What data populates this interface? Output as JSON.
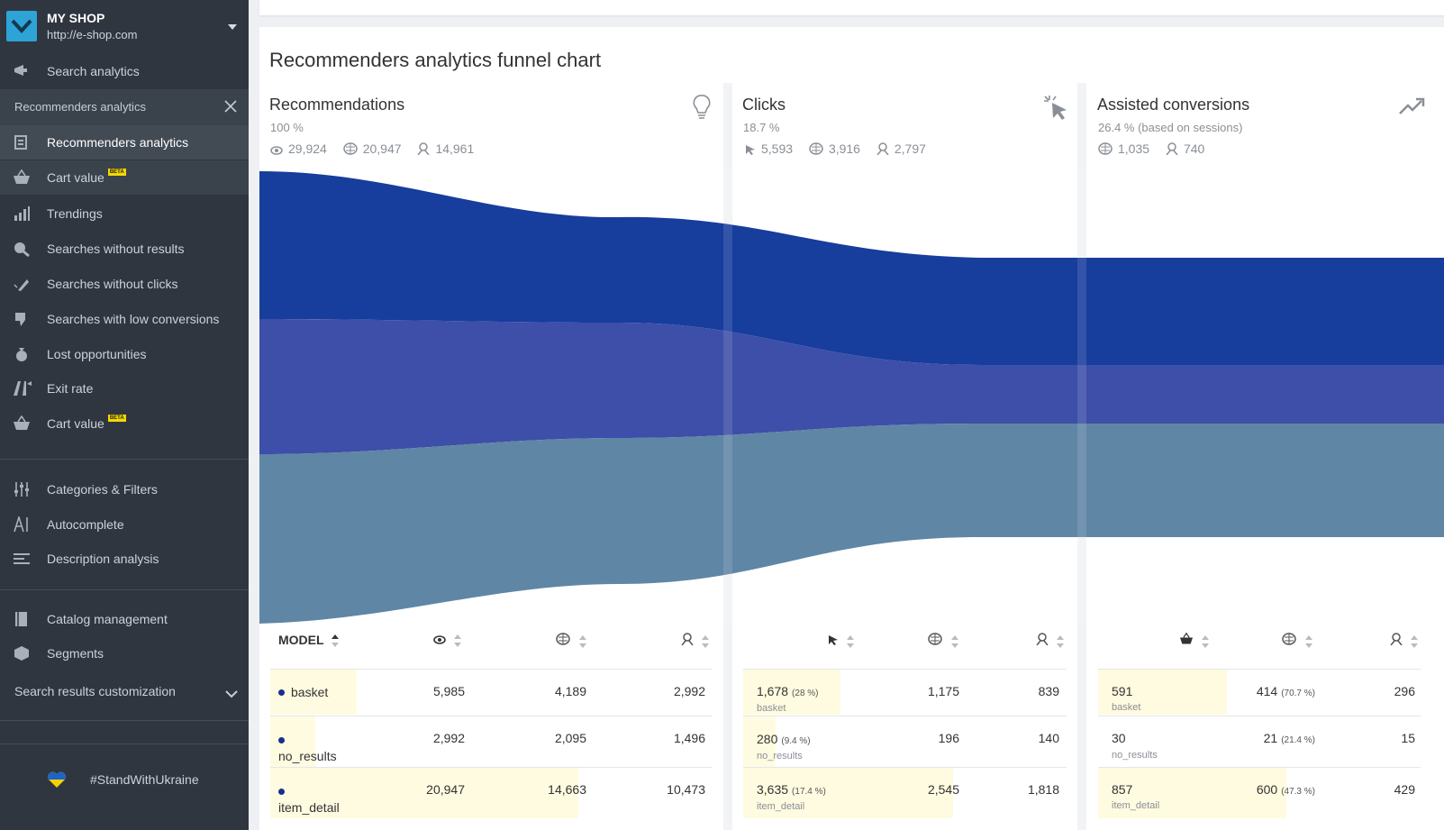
{
  "shop": {
    "name": "MY SHOP",
    "url": "http://e-shop.com"
  },
  "sidebar": {
    "search_analytics": "Search analytics",
    "section_title": "Recommenders analytics",
    "items": [
      {
        "label": "Recommenders analytics",
        "icon": "report-icon"
      },
      {
        "label": "Cart value",
        "icon": "basket-icon",
        "badge": "BETA"
      },
      {
        "label": "Trendings",
        "icon": "bar-chart-icon"
      },
      {
        "label": "Searches without results",
        "icon": "search-no-results-icon"
      },
      {
        "label": "Searches without clicks",
        "icon": "no-click-icon"
      },
      {
        "label": "Searches with low conversions",
        "icon": "thumb-down-icon"
      },
      {
        "label": "Lost opportunities",
        "icon": "money-bag-icon"
      },
      {
        "label": "Exit rate",
        "icon": "exit-icon"
      },
      {
        "label": "Cart value",
        "icon": "basket-icon",
        "badge": "BETA"
      }
    ],
    "tools": [
      {
        "label": "Categories & Filters",
        "icon": "sliders-icon"
      },
      {
        "label": "Autocomplete",
        "icon": "autocomplete-icon"
      },
      {
        "label": "Description analysis",
        "icon": "lines-icon"
      }
    ],
    "catalog": [
      {
        "label": "Catalog management",
        "icon": "book-icon"
      },
      {
        "label": "Segments",
        "icon": "segments-icon"
      }
    ],
    "customization": "Search results customization",
    "ukraine": "#StandWithUkraine"
  },
  "panel": {
    "title": "Recommenders analytics funnel chart"
  },
  "stages": [
    {
      "title": "Recommendations",
      "pct": "100 %",
      "stats": [
        "29,924",
        "20,947",
        "14,961"
      ],
      "icon": "lightbulb-icon"
    },
    {
      "title": "Clicks",
      "pct": "18.7 %",
      "stats": [
        "5,593",
        "3,916",
        "2,797"
      ],
      "icon": "click-icon"
    },
    {
      "title": "Assisted conversions",
      "pct": "26.4 % (based on sessions)",
      "stats": [
        "1,035",
        "740"
      ],
      "icon": "trend-up-icon"
    }
  ],
  "colors": {
    "basket": "#12399b",
    "no_results": "#3d4fa8",
    "item_detail": "#5f86a5"
  },
  "table": {
    "model_header": "MODEL",
    "rows": [
      {
        "model": "basket",
        "views": "5,985",
        "sessions": "4,189",
        "users": "2,992",
        "clicks": "1,678",
        "clicks_pct": "(28 %)",
        "click_sessions": "1,175",
        "click_users": "839",
        "conv": "591",
        "conv_sessions": "414",
        "conv_sessions_pct": "(70.7 %)",
        "conv_users": "296"
      },
      {
        "model": "no_results",
        "views": "2,992",
        "sessions": "2,095",
        "users": "1,496",
        "clicks": "280",
        "clicks_pct": "(9.4 %)",
        "click_sessions": "196",
        "click_users": "140",
        "conv": "30",
        "conv_sessions": "21",
        "conv_sessions_pct": "(21.4 %)",
        "conv_users": "15"
      },
      {
        "model": "item_detail",
        "views": "20,947",
        "sessions": "14,663",
        "users": "10,473",
        "clicks": "3,635",
        "clicks_pct": "(17.4 %)",
        "click_sessions": "2,545",
        "click_users": "1,818",
        "conv": "857",
        "conv_sessions": "600",
        "conv_sessions_pct": "(47.3 %)",
        "conv_users": "429"
      }
    ]
  }
}
